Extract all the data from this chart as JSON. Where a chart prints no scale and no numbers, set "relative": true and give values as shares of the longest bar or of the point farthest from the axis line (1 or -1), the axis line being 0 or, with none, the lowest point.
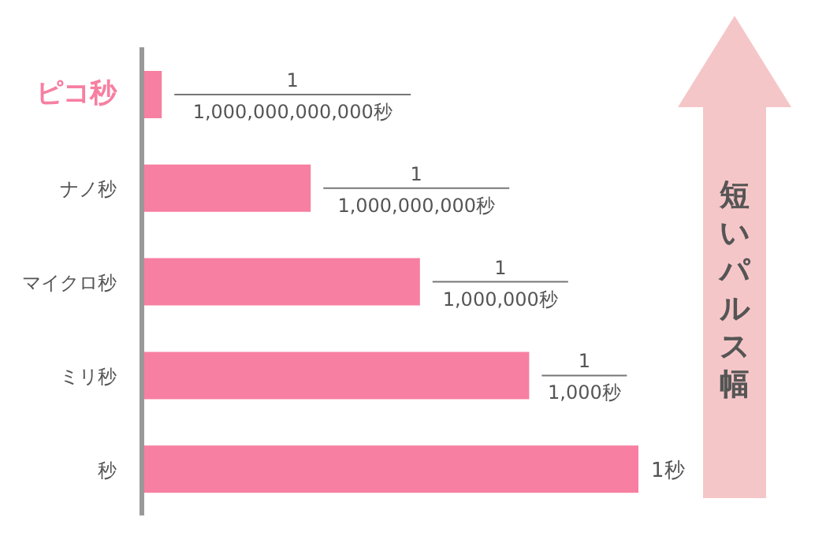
{
  "chart_data": {
    "type": "bar",
    "orientation": "horizontal",
    "relative": true,
    "categories": [
      "ピコ秒",
      "ナノ秒",
      "マイクロ秒",
      "ミリ秒",
      "秒"
    ],
    "values": [
      0.04,
      0.34,
      0.56,
      0.78,
      1
    ],
    "color": "#f77fa1",
    "annotations": [
      {
        "text": "1,000,000,000,000秒",
        "x": 0.04,
        "y": "ピコ秒"
      },
      {
        "text": "1,000,000,000秒",
        "x": 0.34,
        "y": "ナノ秒"
      },
      {
        "text": "1,000,000秒",
        "x": 0.56,
        "y": "マイクロ秒"
      },
      {
        "text": "1,000秒",
        "x": 0.78,
        "y": "ミリ秒"
      },
      {
        "text": "1秒",
        "x": 1,
        "y": "秒"
      },
      "1",
      "1",
      "1",
      "1",
      "短いパルス幅"
    ]
  }
}
